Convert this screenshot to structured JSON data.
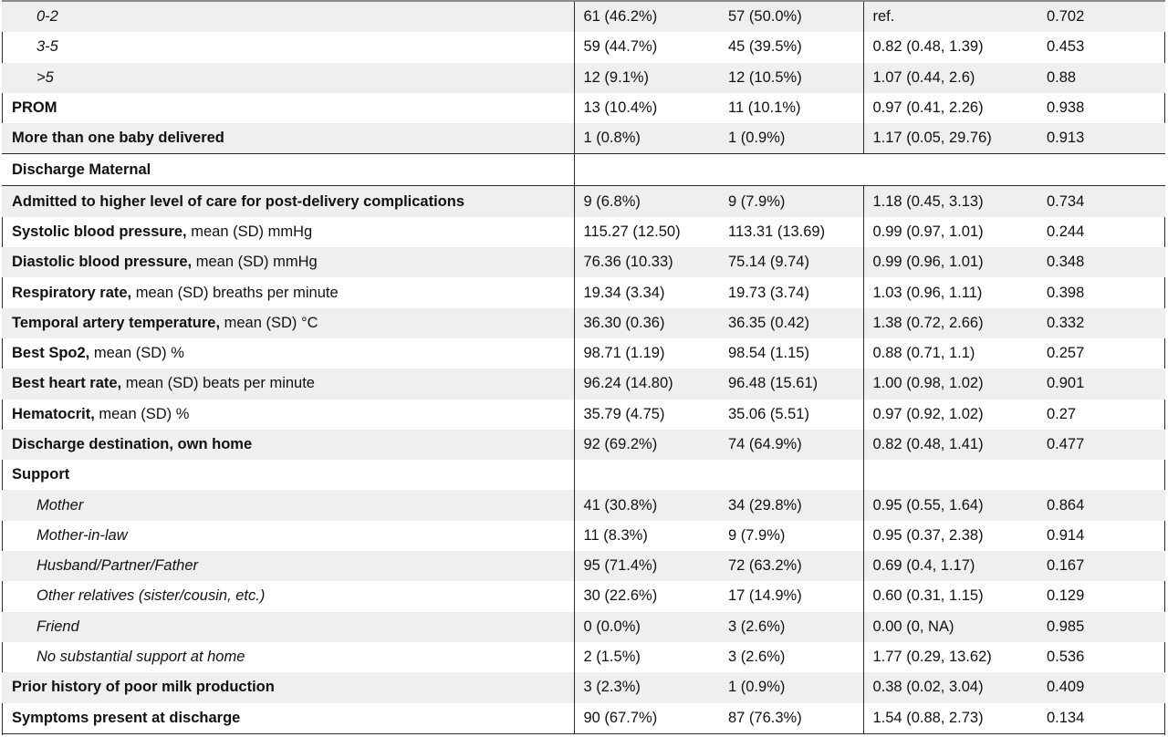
{
  "rows": [
    {
      "label": "0-2",
      "n1": "61 (46.2%)",
      "n2": "57 (50.0%)",
      "or": "ref.",
      "p": "0.702"
    },
    {
      "label": "3-5",
      "n1": "59 (44.7%)",
      "n2": "45 (39.5%)",
      "or": "0.82 (0.48, 1.39)",
      "p": "0.453"
    },
    {
      "label": ">5",
      "n1": "12 (9.1%)",
      "n2": "12 (10.5%)",
      "or": "1.07 (0.44, 2.6)",
      "p": "0.88"
    },
    {
      "label": "PROM",
      "n1": "13 (10.4%)",
      "n2": "11 (10.1%)",
      "or": "0.97 (0.41, 2.26)",
      "p": "0.938"
    },
    {
      "label": "More than one baby delivered",
      "n1": "1 (0.8%)",
      "n2": "1 (0.9%)",
      "or": "1.17 (0.05, 29.76)",
      "p": "0.913"
    },
    {
      "label": "Discharge Maternal"
    },
    {
      "label": "Admitted to higher level of care for post-delivery complications",
      "n1": "9 (6.8%)",
      "n2": "9 (7.9%)",
      "or": "1.18 (0.45, 3.13)",
      "p": "0.734"
    },
    {
      "label": "Systolic blood pressure,",
      "suffix": " mean (SD) mmHg",
      "n1": "115.27 (12.50)",
      "n2": "113.31 (13.69)",
      "or": "0.99 (0.97, 1.01)",
      "p": "0.244"
    },
    {
      "label": "Diastolic blood pressure,",
      "suffix": " mean (SD) mmHg",
      "n1": "76.36 (10.33)",
      "n2": "75.14 (9.74)",
      "or": "0.99 (0.96, 1.01)",
      "p": "0.348"
    },
    {
      "label": "Respiratory rate,",
      "suffix": " mean (SD) breaths per minute",
      "n1": "19.34 (3.34)",
      "n2": "19.73 (3.74)",
      "or": "1.03 (0.96, 1.11)",
      "p": "0.398"
    },
    {
      "label": "Temporal artery temperature,",
      "suffix": " mean (SD) °C",
      "n1": "36.30 (0.36)",
      "n2": "36.35 (0.42)",
      "or": "1.38 (0.72, 2.66)",
      "p": "0.332"
    },
    {
      "label": "Best Spo2,",
      "suffix": " mean (SD) %",
      "n1": "98.71 (1.19)",
      "n2": "98.54 (1.15)",
      "or": "0.88 (0.71, 1.1)",
      "p": "0.257"
    },
    {
      "label": "Best heart rate,",
      "suffix": " mean (SD) beats per minute",
      "n1": "96.24 (14.80)",
      "n2": "96.48 (15.61)",
      "or": "1.00 (0.98, 1.02)",
      "p": "0.901"
    },
    {
      "label": "Hematocrit,",
      "suffix": " mean (SD) %",
      "n1": "35.79 (4.75)",
      "n2": "35.06 (5.51)",
      "or": "0.97 (0.92, 1.02)",
      "p": "0.27"
    },
    {
      "label": "Discharge destination, own home",
      "n1": "92 (69.2%)",
      "n2": "74 (64.9%)",
      "or": "0.82 (0.48, 1.41)",
      "p": "0.477"
    },
    {
      "label": "Support",
      "n1": "",
      "n2": "",
      "or": "",
      "p": ""
    },
    {
      "label": "Mother",
      "n1": "41 (30.8%)",
      "n2": "34 (29.8%)",
      "or": "0.95 (0.55, 1.64)",
      "p": "0.864"
    },
    {
      "label": "Mother-in-law",
      "n1": "11 (8.3%)",
      "n2": "9 (7.9%)",
      "or": "0.95 (0.37, 2.38)",
      "p": "0.914"
    },
    {
      "label": "Husband/Partner/Father",
      "n1": "95 (71.4%)",
      "n2": "72 (63.2%)",
      "or": "0.69 (0.4, 1.17)",
      "p": "0.167"
    },
    {
      "label": "Other relatives (sister/cousin, etc.)",
      "n1": "30 (22.6%)",
      "n2": "17 (14.9%)",
      "or": "0.60 (0.31, 1.15)",
      "p": "0.129"
    },
    {
      "label": "Friend",
      "n1": "0 (0.0%)",
      "n2": "3 (2.6%)",
      "or": "0.00 (0, NA)",
      "p": "0.985"
    },
    {
      "label": "No substantial support at home",
      "n1": "2 (1.5%)",
      "n2": "3 (2.6%)",
      "or": "1.77 (0.29, 13.62)",
      "p": "0.536"
    },
    {
      "label": "Prior history of poor milk production",
      "n1": "3 (2.3%)",
      "n2": "1 (0.9%)",
      "or": "0.38 (0.02, 3.04)",
      "p": "0.409"
    },
    {
      "label": "Symptoms present at discharge",
      "n1": "90 (67.7%)",
      "n2": "87 (76.3%)",
      "or": "1.54 (0.88, 2.73)",
      "p": "0.134"
    }
  ]
}
